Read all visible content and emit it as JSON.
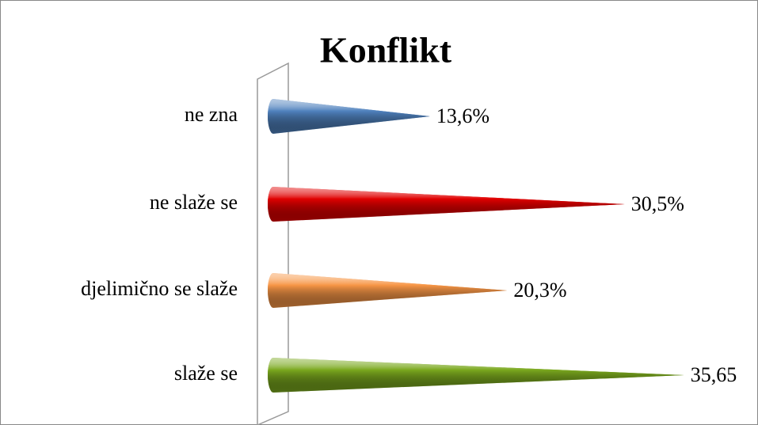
{
  "chart_data": {
    "type": "cone-bar",
    "title": "Konflikt",
    "categories": [
      "ne zna",
      "ne slaže se",
      "djelimično se slaže",
      "slaže se"
    ],
    "values": [
      13.6,
      30.5,
      20.3,
      35.65
    ],
    "value_labels": [
      "13,6%",
      "30,5%",
      "20,3%",
      "35,65"
    ],
    "colors": [
      "#4f81bd",
      "#e00000",
      "#f79646",
      "#7aa81e"
    ]
  }
}
